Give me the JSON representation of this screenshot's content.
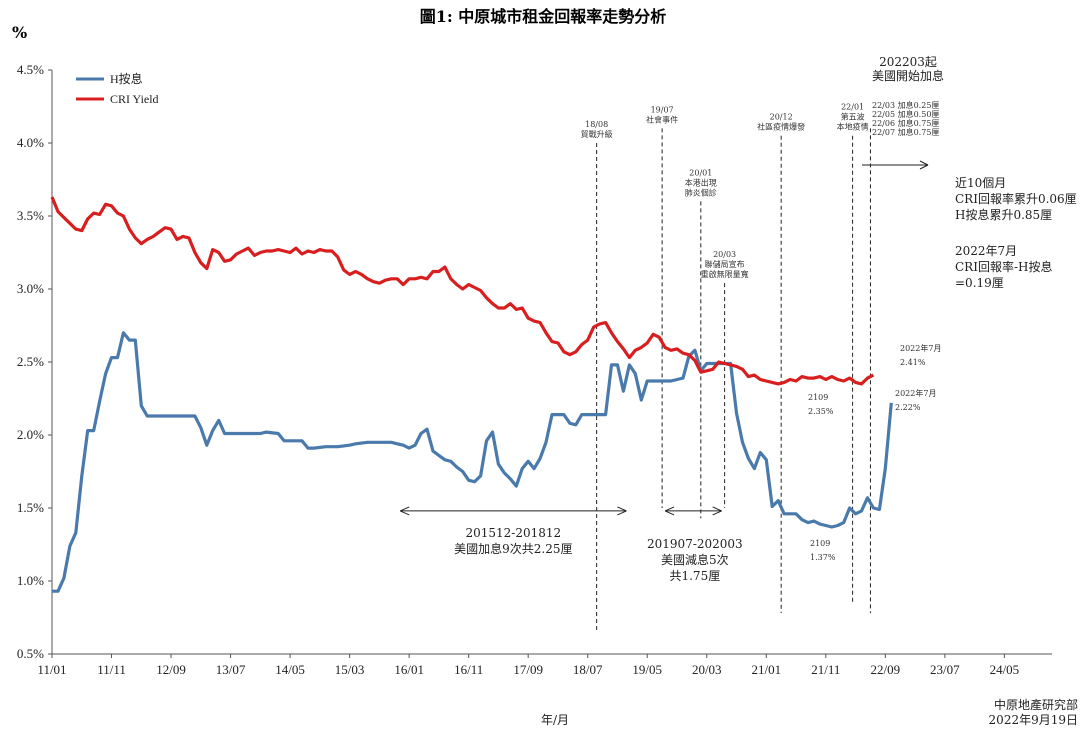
{
  "chart_data": {
    "type": "line",
    "title": "圖1: 中原城市租金回報率走勢分析",
    "ylabel": "%",
    "xlabel": "年/月",
    "ylim": [
      0.5,
      4.5
    ],
    "yticks": [
      "0.5%",
      "1.0%",
      "1.5%",
      "2.0%",
      "2.5%",
      "3.0%",
      "3.5%",
      "4.0%",
      "4.5%"
    ],
    "xticks": [
      "11/01",
      "11/11",
      "12/09",
      "13/07",
      "14/05",
      "15/03",
      "16/01",
      "16/11",
      "17/09",
      "18/07",
      "19/05",
      "20/03",
      "21/01",
      "21/11",
      "22/09",
      "23/07",
      "24/05"
    ],
    "xmax_index": 168,
    "grid": false,
    "legend_position": "top-left",
    "series": [
      {
        "name": "H按息",
        "color": "#4a7aab",
        "points": [
          [
            0,
            0.93
          ],
          [
            1,
            0.93
          ],
          [
            2,
            1.02
          ],
          [
            3,
            1.24
          ],
          [
            4,
            1.33
          ],
          [
            5,
            1.72
          ],
          [
            6,
            2.03
          ],
          [
            7,
            2.03
          ],
          [
            8,
            2.23
          ],
          [
            9,
            2.42
          ],
          [
            10,
            2.53
          ],
          [
            11,
            2.53
          ],
          [
            12,
            2.7
          ],
          [
            13,
            2.65
          ],
          [
            14,
            2.65
          ],
          [
            15,
            2.2
          ],
          [
            16,
            2.13
          ],
          [
            18,
            2.13
          ],
          [
            20,
            2.13
          ],
          [
            22,
            2.13
          ],
          [
            24,
            2.13
          ],
          [
            25,
            2.05
          ],
          [
            26,
            1.93
          ],
          [
            27,
            2.03
          ],
          [
            28,
            2.1
          ],
          [
            29,
            2.01
          ],
          [
            32,
            2.01
          ],
          [
            35,
            2.01
          ],
          [
            36,
            2.02
          ],
          [
            38,
            2.01
          ],
          [
            39,
            1.96
          ],
          [
            42,
            1.96
          ],
          [
            43,
            1.91
          ],
          [
            44,
            1.91
          ],
          [
            46,
            1.92
          ],
          [
            48,
            1.92
          ],
          [
            50,
            1.93
          ],
          [
            51,
            1.94
          ],
          [
            53,
            1.95
          ],
          [
            55,
            1.95
          ],
          [
            57,
            1.95
          ],
          [
            58,
            1.94
          ],
          [
            59,
            1.93
          ],
          [
            60,
            1.91
          ],
          [
            61,
            1.93
          ],
          [
            62,
            2.01
          ],
          [
            63,
            2.04
          ],
          [
            64,
            1.89
          ],
          [
            65,
            1.86
          ],
          [
            66,
            1.83
          ],
          [
            67,
            1.82
          ],
          [
            68,
            1.78
          ],
          [
            69,
            1.75
          ],
          [
            70,
            1.69
          ],
          [
            71,
            1.68
          ],
          [
            72,
            1.72
          ],
          [
            73,
            1.96
          ],
          [
            74,
            2.02
          ],
          [
            75,
            1.8
          ],
          [
            76,
            1.74
          ],
          [
            77,
            1.7
          ],
          [
            78,
            1.65
          ],
          [
            79,
            1.77
          ],
          [
            80,
            1.82
          ],
          [
            81,
            1.77
          ],
          [
            82,
            1.84
          ],
          [
            83,
            1.95
          ],
          [
            84,
            2.14
          ],
          [
            86,
            2.14
          ],
          [
            87,
            2.08
          ],
          [
            88,
            2.07
          ],
          [
            89,
            2.14
          ],
          [
            91,
            2.14
          ],
          [
            93,
            2.14
          ],
          [
            94,
            2.48
          ],
          [
            95,
            2.48
          ],
          [
            96,
            2.3
          ],
          [
            97,
            2.48
          ],
          [
            98,
            2.42
          ],
          [
            99,
            2.24
          ],
          [
            100,
            2.37
          ],
          [
            103,
            2.37
          ],
          [
            104,
            2.37
          ],
          [
            105,
            2.38
          ],
          [
            106,
            2.39
          ],
          [
            107,
            2.54
          ],
          [
            108,
            2.58
          ],
          [
            109,
            2.44
          ],
          [
            110,
            2.49
          ],
          [
            111,
            2.49
          ],
          [
            113,
            2.49
          ],
          [
            114,
            2.49
          ],
          [
            115,
            2.15
          ],
          [
            116,
            1.95
          ],
          [
            117,
            1.84
          ],
          [
            118,
            1.77
          ],
          [
            119,
            1.88
          ],
          [
            120,
            1.83
          ],
          [
            121,
            1.51
          ],
          [
            122,
            1.55
          ],
          [
            123,
            1.46
          ],
          [
            124,
            1.46
          ],
          [
            125,
            1.46
          ],
          [
            126,
            1.42
          ],
          [
            127,
            1.4
          ],
          [
            128,
            1.41
          ],
          [
            129,
            1.39
          ],
          [
            130,
            1.38
          ],
          [
            131,
            1.37
          ],
          [
            132,
            1.38
          ],
          [
            133,
            1.4
          ],
          [
            134,
            1.5
          ],
          [
            135,
            1.46
          ],
          [
            136,
            1.48
          ],
          [
            137,
            1.57
          ],
          [
            138,
            1.5
          ],
          [
            139,
            1.49
          ],
          [
            140,
            1.77
          ],
          [
            141,
            2.22
          ]
        ]
      },
      {
        "name": "CRI Yield",
        "color": "#d81e1e",
        "points": [
          [
            0,
            3.63
          ],
          [
            1,
            3.53
          ],
          [
            2,
            3.49
          ],
          [
            3,
            3.45
          ],
          [
            4,
            3.41
          ],
          [
            5,
            3.4
          ],
          [
            6,
            3.48
          ],
          [
            7,
            3.52
          ],
          [
            8,
            3.51
          ],
          [
            9,
            3.58
          ],
          [
            10,
            3.57
          ],
          [
            11,
            3.52
          ],
          [
            12,
            3.5
          ],
          [
            13,
            3.41
          ],
          [
            14,
            3.35
          ],
          [
            15,
            3.31
          ],
          [
            16,
            3.34
          ],
          [
            17,
            3.36
          ],
          [
            18,
            3.39
          ],
          [
            19,
            3.42
          ],
          [
            20,
            3.41
          ],
          [
            21,
            3.34
          ],
          [
            22,
            3.36
          ],
          [
            23,
            3.35
          ],
          [
            24,
            3.25
          ],
          [
            25,
            3.18
          ],
          [
            26,
            3.14
          ],
          [
            27,
            3.27
          ],
          [
            28,
            3.25
          ],
          [
            29,
            3.19
          ],
          [
            30,
            3.2
          ],
          [
            31,
            3.24
          ],
          [
            32,
            3.26
          ],
          [
            33,
            3.28
          ],
          [
            34,
            3.23
          ],
          [
            35,
            3.25
          ],
          [
            36,
            3.26
          ],
          [
            37,
            3.26
          ],
          [
            38,
            3.27
          ],
          [
            39,
            3.26
          ],
          [
            40,
            3.25
          ],
          [
            41,
            3.28
          ],
          [
            42,
            3.24
          ],
          [
            43,
            3.26
          ],
          [
            44,
            3.25
          ],
          [
            45,
            3.27
          ],
          [
            46,
            3.26
          ],
          [
            47,
            3.26
          ],
          [
            48,
            3.22
          ],
          [
            49,
            3.13
          ],
          [
            50,
            3.1
          ],
          [
            51,
            3.12
          ],
          [
            52,
            3.1
          ],
          [
            53,
            3.07
          ],
          [
            54,
            3.05
          ],
          [
            55,
            3.04
          ],
          [
            56,
            3.06
          ],
          [
            57,
            3.07
          ],
          [
            58,
            3.07
          ],
          [
            59,
            3.03
          ],
          [
            60,
            3.07
          ],
          [
            61,
            3.07
          ],
          [
            62,
            3.08
          ],
          [
            63,
            3.07
          ],
          [
            64,
            3.12
          ],
          [
            65,
            3.12
          ],
          [
            66,
            3.15
          ],
          [
            67,
            3.07
          ],
          [
            68,
            3.03
          ],
          [
            69,
            3.0
          ],
          [
            70,
            3.03
          ],
          [
            71,
            3.01
          ],
          [
            72,
            2.99
          ],
          [
            73,
            2.94
          ],
          [
            74,
            2.9
          ],
          [
            75,
            2.87
          ],
          [
            76,
            2.87
          ],
          [
            77,
            2.9
          ],
          [
            78,
            2.86
          ],
          [
            79,
            2.87
          ],
          [
            80,
            2.8
          ],
          [
            81,
            2.78
          ],
          [
            82,
            2.77
          ],
          [
            83,
            2.7
          ],
          [
            84,
            2.64
          ],
          [
            85,
            2.63
          ],
          [
            86,
            2.57
          ],
          [
            87,
            2.55
          ],
          [
            88,
            2.57
          ],
          [
            89,
            2.62
          ],
          [
            90,
            2.65
          ],
          [
            91,
            2.74
          ],
          [
            92,
            2.76
          ],
          [
            93,
            2.77
          ],
          [
            94,
            2.7
          ],
          [
            95,
            2.64
          ],
          [
            96,
            2.59
          ],
          [
            97,
            2.53
          ],
          [
            98,
            2.58
          ],
          [
            99,
            2.6
          ],
          [
            100,
            2.63
          ],
          [
            101,
            2.69
          ],
          [
            102,
            2.67
          ],
          [
            103,
            2.6
          ],
          [
            104,
            2.58
          ],
          [
            105,
            2.59
          ],
          [
            106,
            2.56
          ],
          [
            107,
            2.55
          ],
          [
            108,
            2.51
          ],
          [
            109,
            2.43
          ],
          [
            110,
            2.44
          ],
          [
            111,
            2.45
          ],
          [
            112,
            2.5
          ],
          [
            113,
            2.49
          ],
          [
            114,
            2.48
          ],
          [
            115,
            2.47
          ],
          [
            116,
            2.45
          ],
          [
            117,
            2.4
          ],
          [
            118,
            2.41
          ],
          [
            119,
            2.38
          ],
          [
            120,
            2.37
          ],
          [
            121,
            2.36
          ],
          [
            122,
            2.35
          ],
          [
            123,
            2.36
          ],
          [
            124,
            2.38
          ],
          [
            125,
            2.37
          ],
          [
            126,
            2.4
          ],
          [
            127,
            2.39
          ],
          [
            128,
            2.39
          ],
          [
            129,
            2.4
          ],
          [
            130,
            2.38
          ],
          [
            131,
            2.4
          ],
          [
            132,
            2.38
          ],
          [
            133,
            2.37
          ],
          [
            134,
            2.39
          ],
          [
            135,
            2.36
          ],
          [
            136,
            2.35
          ],
          [
            137,
            2.39
          ],
          [
            138,
            2.41
          ]
        ]
      }
    ],
    "event_lines": [
      {
        "x": 91.5,
        "y_top": 4.0,
        "y_bottom": 0.65,
        "label_lines": [
          "18/08",
          "貿戰升級"
        ]
      },
      {
        "x": 102.5,
        "y_top": 4.1,
        "y_bottom": 1.5,
        "label_lines": [
          "19/07",
          "社會事件"
        ]
      },
      {
        "x": 109.0,
        "y_top": 3.6,
        "y_bottom": 1.43,
        "label_lines": [
          "20/01",
          "本港出現",
          "肺炎個診"
        ]
      },
      {
        "x": 113.0,
        "y_top": 3.04,
        "y_bottom": 1.5,
        "label_lines": [
          "20/03",
          "聯儲局宣布",
          "重啟無限量寬"
        ]
      },
      {
        "x": 122.5,
        "y_top": 4.05,
        "y_bottom": 0.78,
        "label_lines": [
          "20/12",
          "社區疫情爆發"
        ]
      },
      {
        "x": 134.5,
        "y_top": 4.05,
        "y_bottom": 0.85,
        "label_lines": [
          "22/01",
          "第五波",
          "本地疫情"
        ]
      },
      {
        "x": 137.5,
        "y_top": 4.1,
        "y_bottom": 0.78,
        "label_lines": []
      }
    ],
    "annotations": {
      "rate_hike_title": [
        "202203起",
        "美國開始加息"
      ],
      "rate_hike_list": [
        "22/03 加息0.25厘",
        "22/05 加息0.50厘",
        "22/06 加息0.75厘",
        "22/07 加息0.75厘"
      ],
      "summary_block_1": [
        "近10個月",
        "CRI回報率累升0.06厘",
        "H按息累升0.85厘"
      ],
      "summary_block_2": [
        "2022年7月",
        "CRI回報率-H按息",
        "=0.19厘"
      ],
      "cri_end_label": [
        "2022年7月",
        "2.41%"
      ],
      "h_end_label": [
        "2022年7月",
        "2.22%"
      ],
      "cri_low_label": [
        "2109",
        "2.35%"
      ],
      "h_low_label": [
        "2109",
        "1.37%"
      ],
      "range_1_label": [
        "201512-201812",
        "美國加息9次共2.25厘"
      ],
      "range_2_label": [
        "201907-202003",
        "美國減息5次",
        "共1.75厘"
      ]
    },
    "source": [
      "中原地產研究部",
      "2022年9月19日"
    ]
  }
}
